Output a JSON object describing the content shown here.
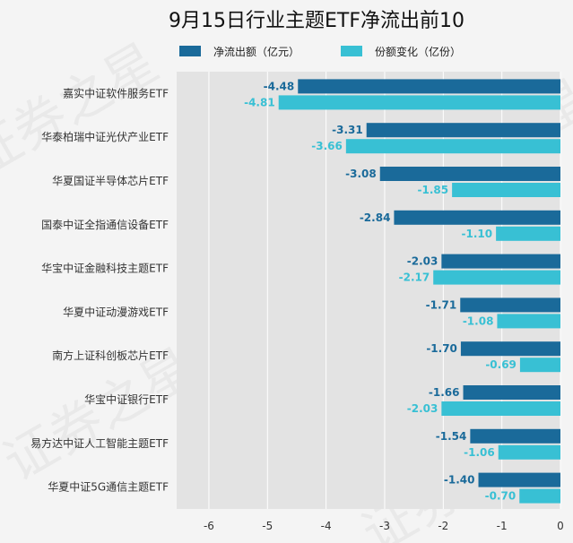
{
  "chart_data": {
    "type": "bar",
    "orientation": "horizontal",
    "title": "9月15日行业主题ETF净流出前10",
    "categories": [
      "嘉实中证软件服务ETF",
      "华泰柏瑞中证光伏产业ETF",
      "华夏国证半导体芯片ETF",
      "国泰中证全指通信设备ETF",
      "华宝中证金融科技主题ETF",
      "华夏中证动漫游戏ETF",
      "南方上证科创板芯片ETF",
      "华宝中证银行ETF",
      "易方达中证人工智能主题ETF",
      "华夏中证5G通信主题ETF"
    ],
    "series": [
      {
        "name": "净流出额（亿元）",
        "color": "#1a6a9a",
        "values": [
          -4.48,
          -3.31,
          -3.08,
          -2.84,
          -2.03,
          -1.71,
          -1.7,
          -1.66,
          -1.54,
          -1.4
        ],
        "labels": [
          "-4.48",
          "-3.31",
          "-3.08",
          "-2.84",
          "-2.03",
          "-1.71",
          "-1.70",
          "-1.66",
          "-1.54",
          "-1.40"
        ]
      },
      {
        "name": "份额变化（亿份）",
        "color": "#38c0d4",
        "values": [
          -4.81,
          -3.66,
          -1.85,
          -1.1,
          -2.17,
          -1.08,
          -0.69,
          -2.03,
          -1.06,
          -0.7
        ],
        "labels": [
          "-4.81",
          "-3.66",
          "-1.85",
          "-1.10",
          "-2.17",
          "-1.08",
          "-0.69",
          "-2.03",
          "-1.06",
          "-0.70"
        ]
      }
    ],
    "xticks": [
      -6,
      -5,
      -4,
      -3,
      -2,
      -1,
      0
    ],
    "xtick_labels": [
      "-6",
      "-5",
      "-4",
      "-3",
      "-2",
      "-1",
      "0"
    ],
    "xlim": [
      -6.55,
      0
    ],
    "grid": true,
    "legend_position": "top"
  },
  "watermark": "证券之星"
}
